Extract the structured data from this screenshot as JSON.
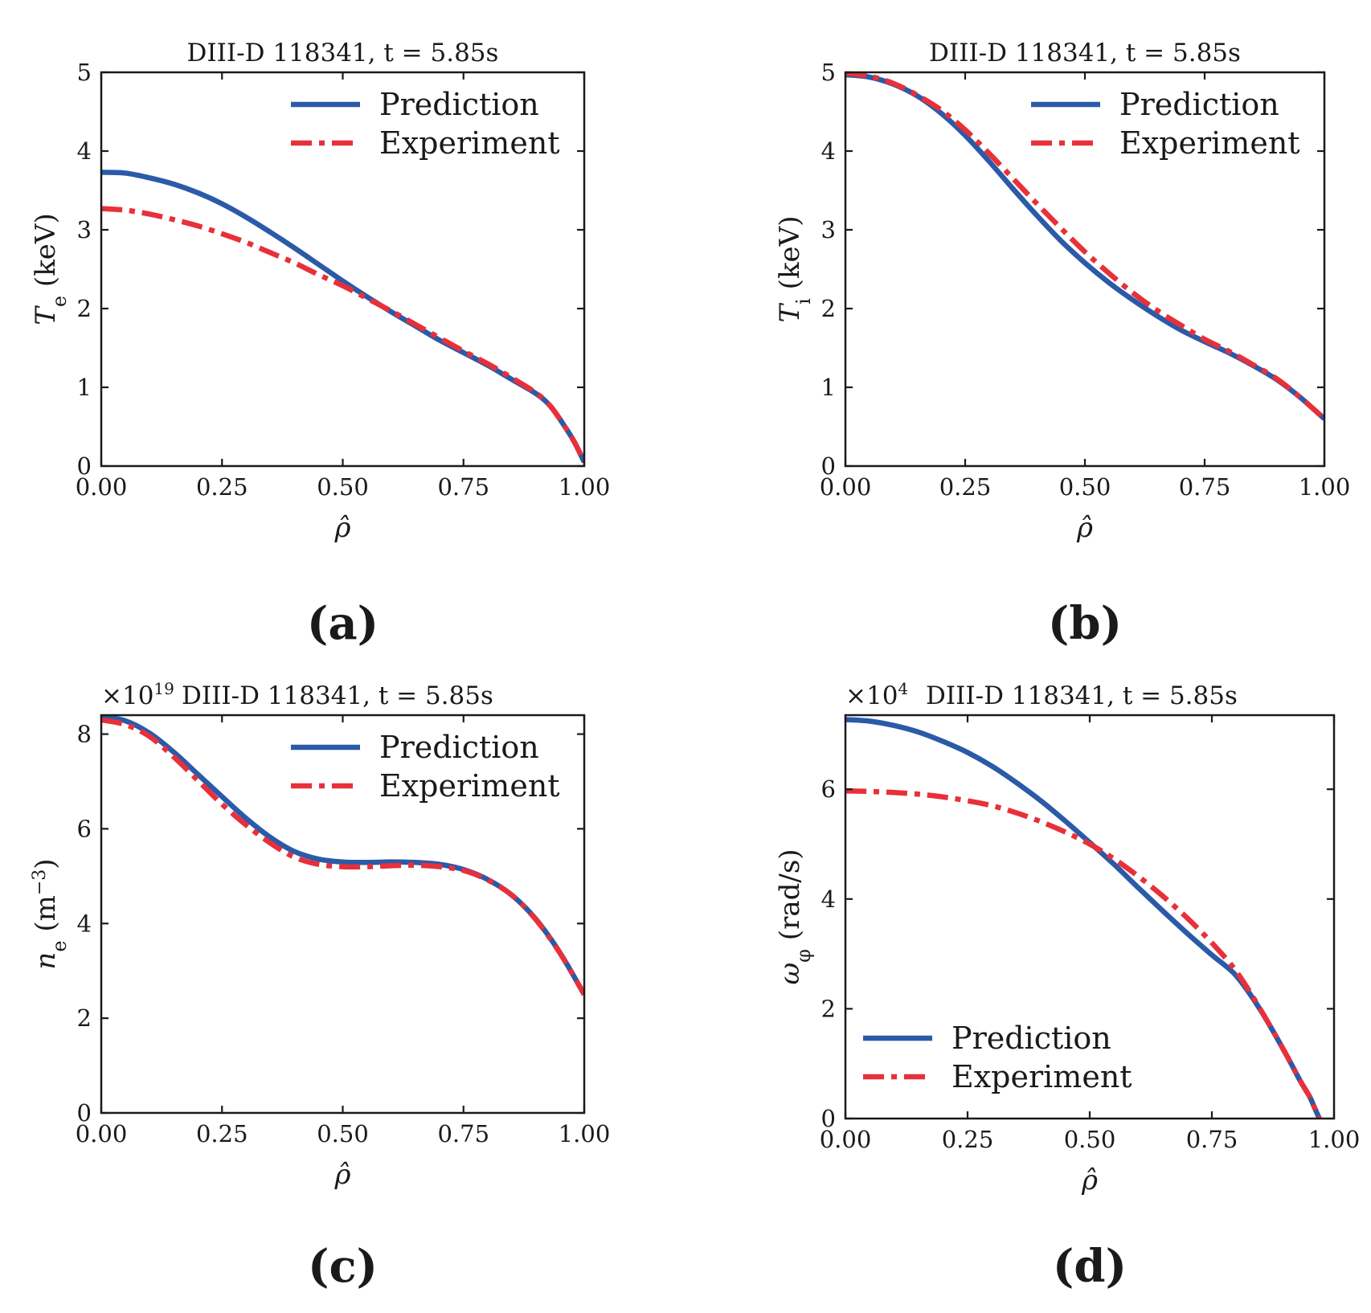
{
  "figure": {
    "captions": [
      "(a)",
      "(b)",
      "(c)",
      "(d)"
    ]
  },
  "chart_data": [
    {
      "type": "line",
      "id": "a",
      "caption": "(a)",
      "title": "DIII-D 118341, t = 5.85s",
      "xlabel": "ρ̂",
      "ylabel": "T_e (keV)",
      "ylabel_main": "T",
      "ylabel_sub": "e",
      "ylabel_unit": "(keV)",
      "xlim": [
        0,
        1
      ],
      "ylim": [
        0,
        5
      ],
      "xticks": [
        0,
        0.25,
        0.5,
        0.75,
        1.0
      ],
      "xtick_labels": [
        "0.00",
        "0.25",
        "0.50",
        "0.75",
        "1.00"
      ],
      "yticks": [
        0,
        1,
        2,
        3,
        4,
        5
      ],
      "ytick_labels": [
        "0",
        "1",
        "2",
        "3",
        "4",
        "5"
      ],
      "legend_position": "top-right",
      "series": [
        {
          "name": "Prediction",
          "color": "#2b5aa8",
          "style": "solid",
          "x": [
            0,
            0.05,
            0.1,
            0.15,
            0.2,
            0.25,
            0.3,
            0.35,
            0.4,
            0.45,
            0.5,
            0.55,
            0.6,
            0.65,
            0.7,
            0.75,
            0.8,
            0.85,
            0.9,
            0.93,
            0.96,
            0.98,
            1.0
          ],
          "y": [
            3.73,
            3.72,
            3.66,
            3.58,
            3.47,
            3.33,
            3.16,
            2.97,
            2.77,
            2.56,
            2.35,
            2.15,
            1.96,
            1.78,
            1.6,
            1.44,
            1.28,
            1.1,
            0.92,
            0.76,
            0.5,
            0.3,
            0.05
          ]
        },
        {
          "name": "Experiment",
          "color": "#e8303a",
          "style": "dashdot",
          "x": [
            0,
            0.05,
            0.1,
            0.15,
            0.2,
            0.25,
            0.3,
            0.35,
            0.4,
            0.45,
            0.5,
            0.55,
            0.6,
            0.65,
            0.7,
            0.75,
            0.8,
            0.85,
            0.9,
            0.93,
            0.96,
            0.98,
            1.0
          ],
          "y": [
            3.27,
            3.25,
            3.2,
            3.13,
            3.05,
            2.95,
            2.84,
            2.71,
            2.58,
            2.43,
            2.29,
            2.13,
            1.97,
            1.8,
            1.63,
            1.46,
            1.3,
            1.12,
            0.93,
            0.76,
            0.5,
            0.3,
            0.05
          ]
        }
      ]
    },
    {
      "type": "line",
      "id": "b",
      "caption": "(b)",
      "title": "DIII-D 118341, t = 5.85s",
      "xlabel": "ρ̂",
      "ylabel": "T_i (keV)",
      "ylabel_main": "T",
      "ylabel_sub": "i",
      "ylabel_unit": "(keV)",
      "xlim": [
        0,
        1
      ],
      "ylim": [
        0,
        5
      ],
      "xticks": [
        0,
        0.25,
        0.5,
        0.75,
        1.0
      ],
      "xtick_labels": [
        "0.00",
        "0.25",
        "0.50",
        "0.75",
        "1.00"
      ],
      "yticks": [
        0,
        1,
        2,
        3,
        4,
        5
      ],
      "ytick_labels": [
        "0",
        "1",
        "2",
        "3",
        "4",
        "5"
      ],
      "legend_position": "top-right",
      "series": [
        {
          "name": "Prediction",
          "color": "#2b5aa8",
          "style": "solid",
          "x": [
            0,
            0.05,
            0.1,
            0.15,
            0.2,
            0.25,
            0.3,
            0.35,
            0.4,
            0.45,
            0.5,
            0.55,
            0.6,
            0.65,
            0.7,
            0.75,
            0.8,
            0.85,
            0.9,
            0.95,
            1.0
          ],
          "y": [
            4.97,
            4.94,
            4.85,
            4.7,
            4.48,
            4.2,
            3.87,
            3.52,
            3.18,
            2.86,
            2.58,
            2.33,
            2.11,
            1.91,
            1.73,
            1.58,
            1.44,
            1.28,
            1.1,
            0.87,
            0.6
          ]
        },
        {
          "name": "Experiment",
          "color": "#e8303a",
          "style": "dashdot",
          "x": [
            0,
            0.05,
            0.1,
            0.15,
            0.2,
            0.25,
            0.3,
            0.35,
            0.4,
            0.45,
            0.5,
            0.55,
            0.6,
            0.65,
            0.7,
            0.75,
            0.8,
            0.85,
            0.9,
            0.95,
            1.0
          ],
          "y": [
            4.99,
            4.95,
            4.86,
            4.71,
            4.52,
            4.27,
            3.97,
            3.65,
            3.33,
            3.02,
            2.72,
            2.45,
            2.2,
            1.98,
            1.79,
            1.61,
            1.46,
            1.29,
            1.11,
            0.87,
            0.6
          ]
        }
      ]
    },
    {
      "type": "line",
      "id": "c",
      "caption": "(c)",
      "title": "DIII-D 118341, t = 5.85s",
      "multiplier": "×10",
      "multiplier_exp": "19",
      "xlabel": "ρ̂",
      "ylabel": "n_e (m^-3)",
      "ylabel_main": "n",
      "ylabel_sub": "e",
      "ylabel_unit": "(m",
      "ylabel_unit_exp": "−3",
      "ylabel_unit_close": ")",
      "xlim": [
        0,
        1
      ],
      "ylim": [
        0,
        8.4
      ],
      "xticks": [
        0,
        0.25,
        0.5,
        0.75,
        1.0
      ],
      "xtick_labels": [
        "0.00",
        "0.25",
        "0.50",
        "0.75",
        "1.00"
      ],
      "yticks": [
        0,
        2,
        4,
        6,
        8
      ],
      "ytick_labels": [
        "0",
        "2",
        "4",
        "6",
        "8"
      ],
      "legend_position": "top-right",
      "series": [
        {
          "name": "Prediction",
          "color": "#2b5aa8",
          "style": "solid",
          "x": [
            0,
            0.05,
            0.1,
            0.15,
            0.2,
            0.25,
            0.3,
            0.35,
            0.4,
            0.45,
            0.5,
            0.55,
            0.6,
            0.65,
            0.7,
            0.75,
            0.8,
            0.85,
            0.9,
            0.95,
            1.0
          ],
          "y": [
            8.38,
            8.28,
            8.02,
            7.62,
            7.15,
            6.68,
            6.22,
            5.82,
            5.52,
            5.36,
            5.3,
            5.29,
            5.3,
            5.29,
            5.25,
            5.14,
            4.93,
            4.6,
            4.09,
            3.38,
            2.5
          ]
        },
        {
          "name": "Experiment",
          "color": "#e8303a",
          "style": "dashdot",
          "x": [
            0,
            0.05,
            0.1,
            0.15,
            0.2,
            0.25,
            0.3,
            0.35,
            0.4,
            0.45,
            0.5,
            0.55,
            0.6,
            0.65,
            0.7,
            0.75,
            0.8,
            0.85,
            0.9,
            0.95,
            1.0
          ],
          "y": [
            8.3,
            8.2,
            7.95,
            7.52,
            7.02,
            6.52,
            6.08,
            5.7,
            5.4,
            5.25,
            5.2,
            5.2,
            5.22,
            5.23,
            5.2,
            5.12,
            4.92,
            4.6,
            4.08,
            3.37,
            2.5
          ]
        }
      ]
    },
    {
      "type": "line",
      "id": "d",
      "caption": "(d)",
      "title": "DIII-D 118341, t = 5.85s",
      "multiplier": "×10",
      "multiplier_exp": "4",
      "xlabel": "ρ̂",
      "ylabel": "ω_φ (rad/s)",
      "ylabel_main": "ω",
      "ylabel_sub": "φ",
      "ylabel_unit": "(rad/s)",
      "xlim": [
        0,
        1
      ],
      "ylim": [
        0,
        7.35
      ],
      "xticks": [
        0,
        0.25,
        0.5,
        0.75,
        1.0
      ],
      "xtick_labels": [
        "0.00",
        "0.25",
        "0.50",
        "0.75",
        "1.00"
      ],
      "yticks": [
        0,
        2,
        4,
        6
      ],
      "ytick_labels": [
        "0",
        "2",
        "4",
        "6"
      ],
      "legend_position": "bottom-left",
      "series": [
        {
          "name": "Prediction",
          "color": "#2b5aa8",
          "style": "solid",
          "x": [
            0,
            0.05,
            0.1,
            0.15,
            0.2,
            0.25,
            0.3,
            0.35,
            0.4,
            0.45,
            0.5,
            0.55,
            0.6,
            0.65,
            0.7,
            0.75,
            0.8,
            0.85,
            0.9,
            0.93,
            0.95,
            0.96,
            0.97
          ],
          "y": [
            7.27,
            7.24,
            7.16,
            7.04,
            6.87,
            6.67,
            6.42,
            6.12,
            5.79,
            5.42,
            5.03,
            4.63,
            4.2,
            3.78,
            3.37,
            2.98,
            2.6,
            1.97,
            1.2,
            0.7,
            0.4,
            0.2,
            0.0
          ]
        },
        {
          "name": "Experiment",
          "color": "#e8303a",
          "style": "dashdot",
          "x": [
            0,
            0.05,
            0.1,
            0.15,
            0.2,
            0.25,
            0.3,
            0.35,
            0.4,
            0.45,
            0.5,
            0.55,
            0.6,
            0.65,
            0.7,
            0.75,
            0.8,
            0.85,
            0.9,
            0.93,
            0.95,
            0.96,
            0.97
          ],
          "y": [
            5.97,
            5.96,
            5.94,
            5.91,
            5.86,
            5.79,
            5.7,
            5.57,
            5.41,
            5.22,
            5.0,
            4.73,
            4.41,
            4.05,
            3.65,
            3.2,
            2.68,
            1.98,
            1.2,
            0.7,
            0.4,
            0.2,
            0.0
          ]
        }
      ]
    }
  ]
}
